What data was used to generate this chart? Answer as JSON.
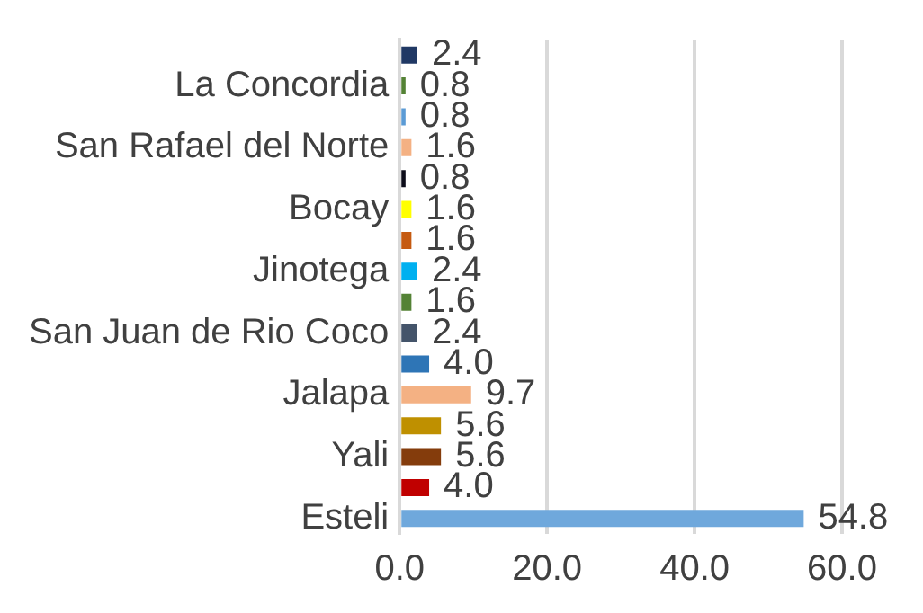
{
  "chart_data": {
    "type": "bar",
    "orientation": "horizontal",
    "categories": [
      null,
      "La Concordia",
      null,
      "San Rafael del Norte",
      null,
      "Bocay",
      null,
      "Jinotega",
      null,
      "San Juan de Rio Coco",
      null,
      "Jalapa",
      null,
      "Yali",
      null,
      "Esteli"
    ],
    "values": [
      2.4,
      0.8,
      0.8,
      1.6,
      0.8,
      1.6,
      1.6,
      2.4,
      1.6,
      2.4,
      4.0,
      9.7,
      5.6,
      5.6,
      4.0,
      54.8
    ],
    "value_labels": [
      "2.4",
      "0.8",
      "0.8",
      "1.6",
      "0.8",
      "1.6",
      "1.6",
      "2.4",
      "1.6",
      "2.4",
      "4.0",
      "9.7",
      "5.6",
      "5.6",
      "4.0",
      "54.8"
    ],
    "colors": [
      "#203864",
      "#548235",
      "#5b9bd5",
      "#f4b183",
      "#0d0d1a",
      "#ffff00",
      "#c55a11",
      "#00b0f0",
      "#548235",
      "#44546a",
      "#2e75b6",
      "#f4b183",
      "#bf9000",
      "#843c0c",
      "#c00000",
      "#6fa8dc"
    ],
    "xlim": [
      0,
      60
    ],
    "xticks": [
      {
        "value": 0,
        "label": "0.0"
      },
      {
        "value": 20,
        "label": "20.0"
      },
      {
        "value": 40,
        "label": "40.0"
      },
      {
        "value": 60,
        "label": "60.0"
      }
    ],
    "grid": "x",
    "legend": false
  }
}
